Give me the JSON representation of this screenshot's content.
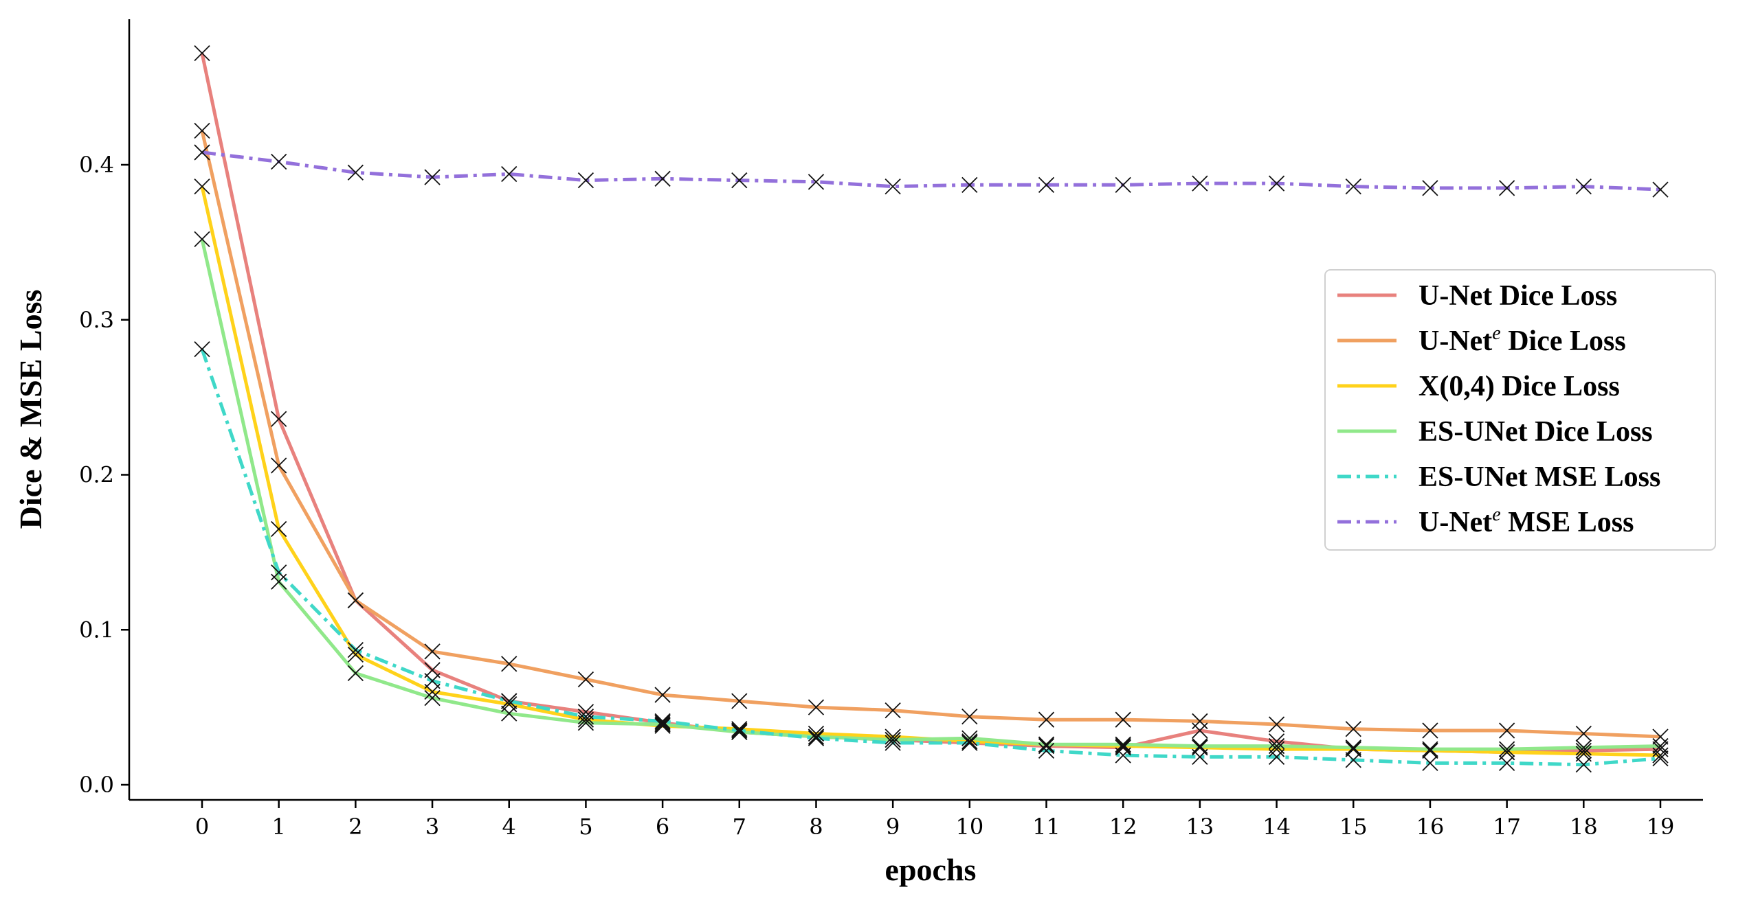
{
  "chart_data": {
    "type": "line",
    "title": "",
    "xlabel": "epochs",
    "ylabel": "Dice & MSE Loss",
    "xlim": [
      -1,
      20
    ],
    "ylim": [
      -0.01,
      0.49
    ],
    "x": [
      0,
      1,
      2,
      3,
      4,
      5,
      6,
      7,
      8,
      9,
      10,
      11,
      12,
      13,
      14,
      15,
      16,
      17,
      18,
      19
    ],
    "x_ticks": [
      "0",
      "1",
      "2",
      "3",
      "4",
      "5",
      "6",
      "7",
      "8",
      "9",
      "10",
      "11",
      "12",
      "13",
      "14",
      "15",
      "16",
      "17",
      "18",
      "19"
    ],
    "y_ticks": [
      {
        "value": 0.0,
        "label": "0.0"
      },
      {
        "value": 0.1,
        "label": "0.1"
      },
      {
        "value": 0.2,
        "label": "0.2"
      },
      {
        "value": 0.3,
        "label": "0.3"
      },
      {
        "value": 0.4,
        "label": "0.4"
      }
    ],
    "grid": false,
    "legend_position": "right",
    "series": [
      {
        "name": "U-Net Dice Loss",
        "legend_main": "U-Net Dice Loss",
        "legend_sup": "",
        "legend_tail": "",
        "color": "#e8817d",
        "style": "solid",
        "values": [
          0.472,
          0.236,
          0.119,
          0.074,
          0.054,
          0.047,
          0.04,
          0.034,
          0.031,
          0.029,
          0.027,
          0.025,
          0.024,
          0.035,
          0.028,
          0.023,
          0.022,
          0.021,
          0.022,
          0.023
        ]
      },
      {
        "name": "U-Net^e Dice Loss",
        "legend_main": "U-Net",
        "legend_sup": "e",
        "legend_tail": " Dice Loss",
        "color": "#f0a060",
        "style": "solid",
        "values": [
          0.422,
          0.206,
          0.119,
          0.086,
          0.078,
          0.068,
          0.058,
          0.054,
          0.05,
          0.048,
          0.044,
          0.042,
          0.042,
          0.041,
          0.039,
          0.036,
          0.035,
          0.035,
          0.033,
          0.031
        ]
      },
      {
        "name": "X(0,4) Dice Loss",
        "legend_main": "X(0,4) Dice Loss",
        "legend_sup": "",
        "legend_tail": "",
        "color": "#ffd21a",
        "style": "solid",
        "values": [
          0.386,
          0.165,
          0.084,
          0.06,
          0.052,
          0.042,
          0.038,
          0.036,
          0.033,
          0.031,
          0.028,
          0.026,
          0.025,
          0.024,
          0.023,
          0.023,
          0.022,
          0.021,
          0.02,
          0.019
        ]
      },
      {
        "name": "ES-UNet Dice Loss",
        "legend_main": "ES-UNet Dice Loss",
        "legend_sup": "",
        "legend_tail": "",
        "color": "#90e88a",
        "style": "solid",
        "values": [
          0.352,
          0.131,
          0.072,
          0.056,
          0.046,
          0.04,
          0.039,
          0.034,
          0.031,
          0.029,
          0.03,
          0.026,
          0.026,
          0.025,
          0.025,
          0.024,
          0.023,
          0.023,
          0.024,
          0.025
        ]
      },
      {
        "name": "ES-UNet MSE Loss",
        "legend_main": "ES-UNet MSE Loss",
        "legend_sup": "",
        "legend_tail": "",
        "color": "#3fd8c8",
        "style": "dashdot",
        "values": [
          0.281,
          0.137,
          0.087,
          0.067,
          0.054,
          0.044,
          0.041,
          0.035,
          0.03,
          0.027,
          0.027,
          0.022,
          0.019,
          0.018,
          0.018,
          0.016,
          0.014,
          0.014,
          0.013,
          0.017
        ]
      },
      {
        "name": "U-Net^e MSE Loss",
        "legend_main": "U-Net",
        "legend_sup": "e",
        "legend_tail": " MSE Loss",
        "color": "#9370db",
        "style": "dashdot",
        "values": [
          0.408,
          0.402,
          0.395,
          0.392,
          0.394,
          0.39,
          0.391,
          0.39,
          0.389,
          0.386,
          0.387,
          0.387,
          0.387,
          0.388,
          0.388,
          0.386,
          0.385,
          0.385,
          0.386,
          0.384
        ]
      }
    ]
  }
}
